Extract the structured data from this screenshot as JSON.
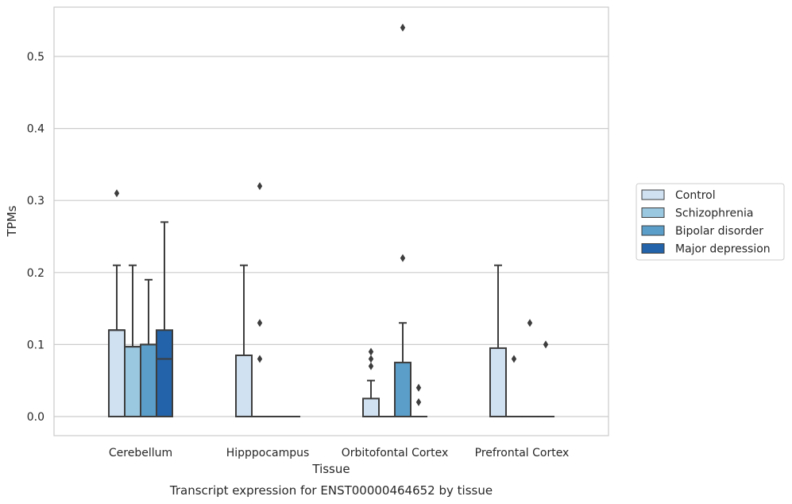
{
  "chart_data": {
    "type": "box",
    "title": "",
    "caption": "Transcript expression for ENST00000464652 by tissue",
    "xlabel": "Tissue",
    "ylabel": "TPMs",
    "ylim": [
      -0.026,
      0.57
    ],
    "yticks": [
      0.0,
      0.1,
      0.2,
      0.3,
      0.4,
      0.5
    ],
    "ytick_labels": [
      "0.0",
      "0.1",
      "0.2",
      "0.3",
      "0.4",
      "0.5"
    ],
    "grid": "horizontal",
    "legend_position": "right",
    "categories": [
      "Cerebellum",
      "Hipppocampus",
      "Orbitofontal Cortex",
      "Prefrontal Cortex"
    ],
    "series": [
      {
        "name": "Control",
        "color": "#d0e1f2",
        "boxes": [
          {
            "q1": 0.0,
            "median": 0.12,
            "q3": 0.12,
            "whisker_low": 0.0,
            "whisker_high": 0.21,
            "outliers": [
              0.31
            ]
          },
          {
            "q1": 0.0,
            "median": 0.0,
            "q3": 0.085,
            "whisker_low": 0.0,
            "whisker_high": 0.21,
            "outliers": []
          },
          {
            "q1": 0.0,
            "median": 0.0,
            "q3": 0.025,
            "whisker_low": 0.0,
            "whisker_high": 0.05,
            "outliers": [
              0.07,
              0.08,
              0.09
            ]
          },
          {
            "q1": 0.0,
            "median": 0.0,
            "q3": 0.095,
            "whisker_low": 0.0,
            "whisker_high": 0.21,
            "outliers": []
          }
        ]
      },
      {
        "name": "Schizophrenia",
        "color": "#9ac8e0",
        "boxes": [
          {
            "q1": 0.0,
            "median": 0.097,
            "q3": 0.097,
            "whisker_low": 0.0,
            "whisker_high": 0.21,
            "outliers": []
          },
          {
            "q1": 0.0,
            "median": 0.0,
            "q3": 0.0,
            "whisker_low": 0.0,
            "whisker_high": 0.0,
            "outliers": [
              0.08,
              0.13,
              0.32
            ]
          },
          {
            "q1": 0.0,
            "median": 0.0,
            "q3": 0.0,
            "whisker_low": 0.0,
            "whisker_high": 0.0,
            "outliers": []
          },
          {
            "q1": 0.0,
            "median": 0.0,
            "q3": 0.0,
            "whisker_low": 0.0,
            "whisker_high": 0.0,
            "outliers": [
              0.08
            ]
          }
        ]
      },
      {
        "name": "Bipolar disorder",
        "color": "#5a9ec9",
        "boxes": [
          {
            "q1": 0.0,
            "median": 0.1,
            "q3": 0.1,
            "whisker_low": 0.0,
            "whisker_high": 0.19,
            "outliers": []
          },
          {
            "q1": 0.0,
            "median": 0.0,
            "q3": 0.0,
            "whisker_low": 0.0,
            "whisker_high": 0.0,
            "outliers": []
          },
          {
            "q1": 0.0,
            "median": 0.0,
            "q3": 0.075,
            "whisker_low": 0.0,
            "whisker_high": 0.13,
            "outliers": [
              0.22,
              0.54
            ]
          },
          {
            "q1": 0.0,
            "median": 0.0,
            "q3": 0.0,
            "whisker_low": 0.0,
            "whisker_high": 0.0,
            "outliers": [
              0.13
            ]
          }
        ]
      },
      {
        "name": "Major depression",
        "color": "#2363a9",
        "boxes": [
          {
            "q1": 0.0,
            "median": 0.08,
            "q3": 0.12,
            "whisker_low": 0.0,
            "whisker_high": 0.27,
            "outliers": []
          },
          {
            "q1": 0.0,
            "median": 0.0,
            "q3": 0.0,
            "whisker_low": 0.0,
            "whisker_high": 0.0,
            "outliers": []
          },
          {
            "q1": 0.0,
            "median": 0.0,
            "q3": 0.0,
            "whisker_low": 0.0,
            "whisker_high": 0.0,
            "outliers": [
              0.02,
              0.04
            ]
          },
          {
            "q1": 0.0,
            "median": 0.0,
            "q3": 0.0,
            "whisker_low": 0.0,
            "whisker_high": 0.0,
            "outliers": [
              0.1
            ]
          }
        ]
      }
    ]
  }
}
